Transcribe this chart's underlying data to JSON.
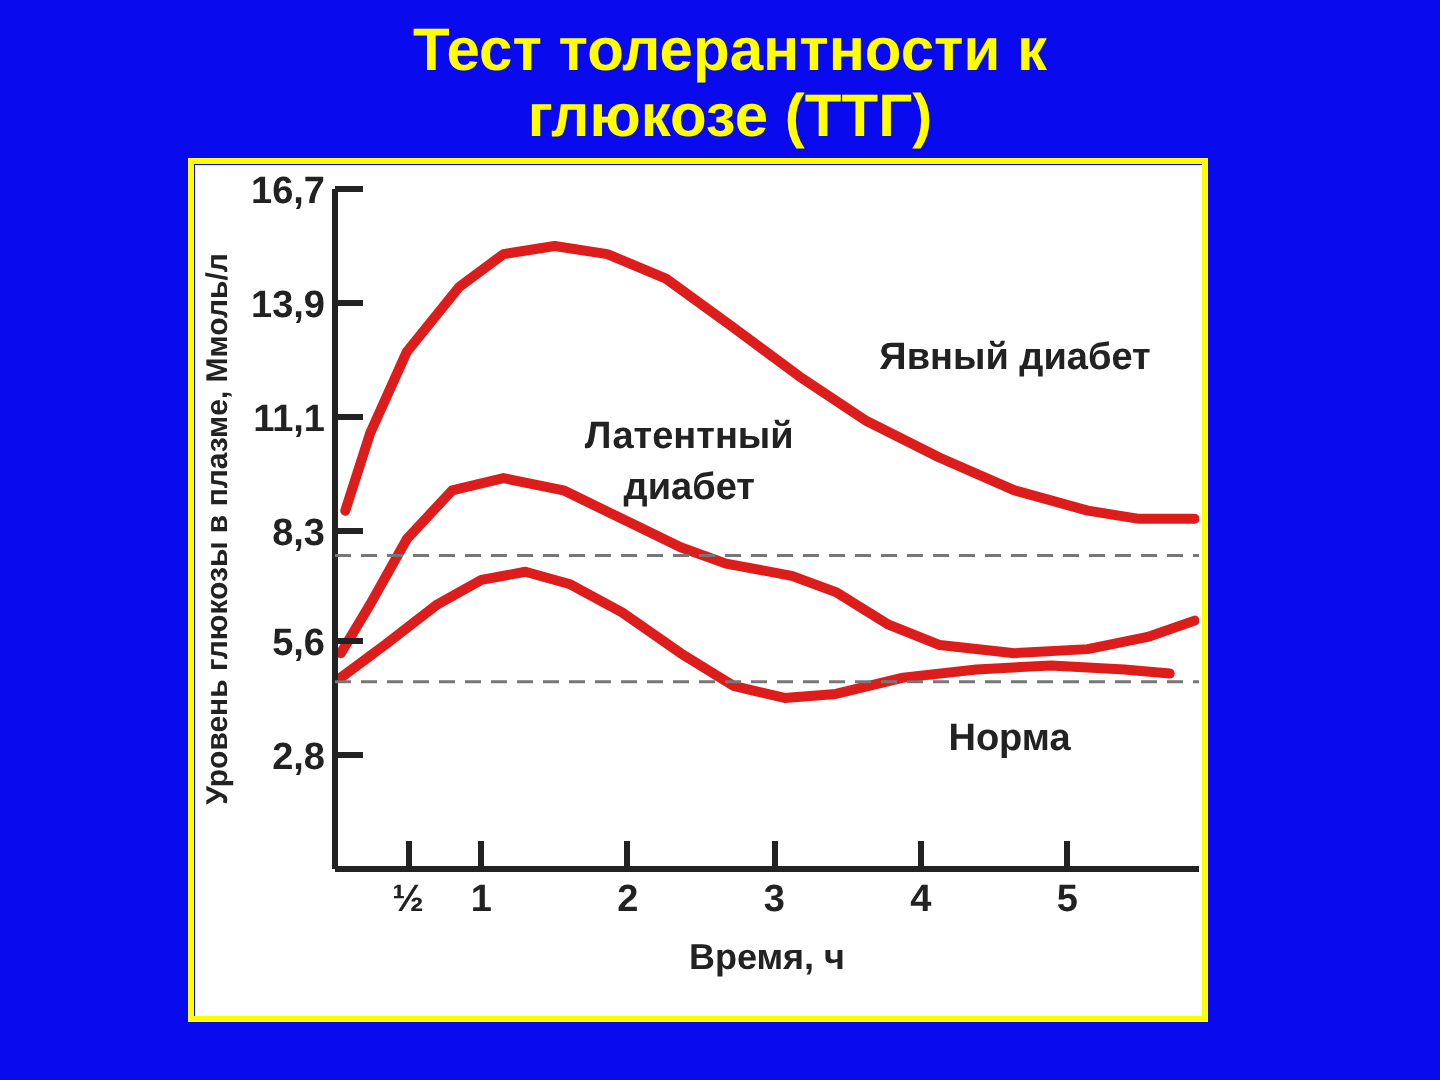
{
  "chart_data": {
    "type": "line",
    "title": "Тест толерантности к глюкозе (ТТГ)",
    "xlabel": "Время, ч",
    "ylabel": "Уровень глюкозы в плазме, Ммоль/л",
    "xlim": [
      0,
      5.9
    ],
    "ylim": [
      0,
      16.7
    ],
    "xticks": [
      {
        "value": 0.5,
        "label": "½"
      },
      1,
      2,
      3,
      4,
      5
    ],
    "yticks": [
      {
        "value": 2.8,
        "label": "2,8"
      },
      {
        "value": 5.6,
        "label": "5,6"
      },
      {
        "value": 8.3,
        "label": "8,3"
      },
      {
        "value": 11.1,
        "label": "11,1"
      },
      {
        "value": 13.9,
        "label": "13,9"
      },
      {
        "value": 16.7,
        "label": "16,7"
      }
    ],
    "grid": false,
    "line_style": "solid",
    "marker": "none",
    "ref_lines": [
      {
        "axis": "y",
        "value": 7.7,
        "color": "#777777",
        "line_style": "dashed"
      },
      {
        "axis": "y",
        "value": 4.6,
        "color": "#777777",
        "line_style": "dashed"
      }
    ],
    "series": [
      {
        "name": "Явный диабет",
        "color": "#dd1c1c",
        "x": [
          0.07,
          0.24,
          0.49,
          0.85,
          1.15,
          1.5,
          1.86,
          2.26,
          2.72,
          3.17,
          3.63,
          4.13,
          4.64,
          5.14,
          5.49,
          5.87
        ],
        "values": [
          8.8,
          10.7,
          12.7,
          14.3,
          15.1,
          15.3,
          15.1,
          14.5,
          13.3,
          12.1,
          11.0,
          10.1,
          9.3,
          8.8,
          8.6,
          8.6
        ]
      },
      {
        "name": "Латентный диабет",
        "color": "#dd1c1c",
        "x": [
          0.04,
          0.24,
          0.49,
          0.8,
          1.15,
          1.56,
          1.96,
          2.36,
          2.67,
          3.12,
          3.42,
          3.78,
          4.13,
          4.64,
          5.14,
          5.55,
          5.87
        ],
        "values": [
          5.3,
          6.5,
          8.1,
          9.3,
          9.6,
          9.3,
          8.6,
          7.9,
          7.5,
          7.2,
          6.8,
          6.0,
          5.5,
          5.3,
          5.4,
          5.7,
          6.1
        ]
      },
      {
        "name": "Норма",
        "color": "#dd1c1c",
        "x": [
          0.04,
          0.34,
          0.7,
          1.0,
          1.3,
          1.6,
          1.96,
          2.36,
          2.72,
          3.07,
          3.42,
          3.88,
          4.38,
          4.89,
          5.39,
          5.7
        ],
        "values": [
          4.7,
          5.5,
          6.5,
          7.1,
          7.3,
          7.0,
          6.3,
          5.3,
          4.5,
          4.2,
          4.3,
          4.7,
          4.9,
          5.0,
          4.9,
          4.8
        ]
      }
    ]
  }
}
